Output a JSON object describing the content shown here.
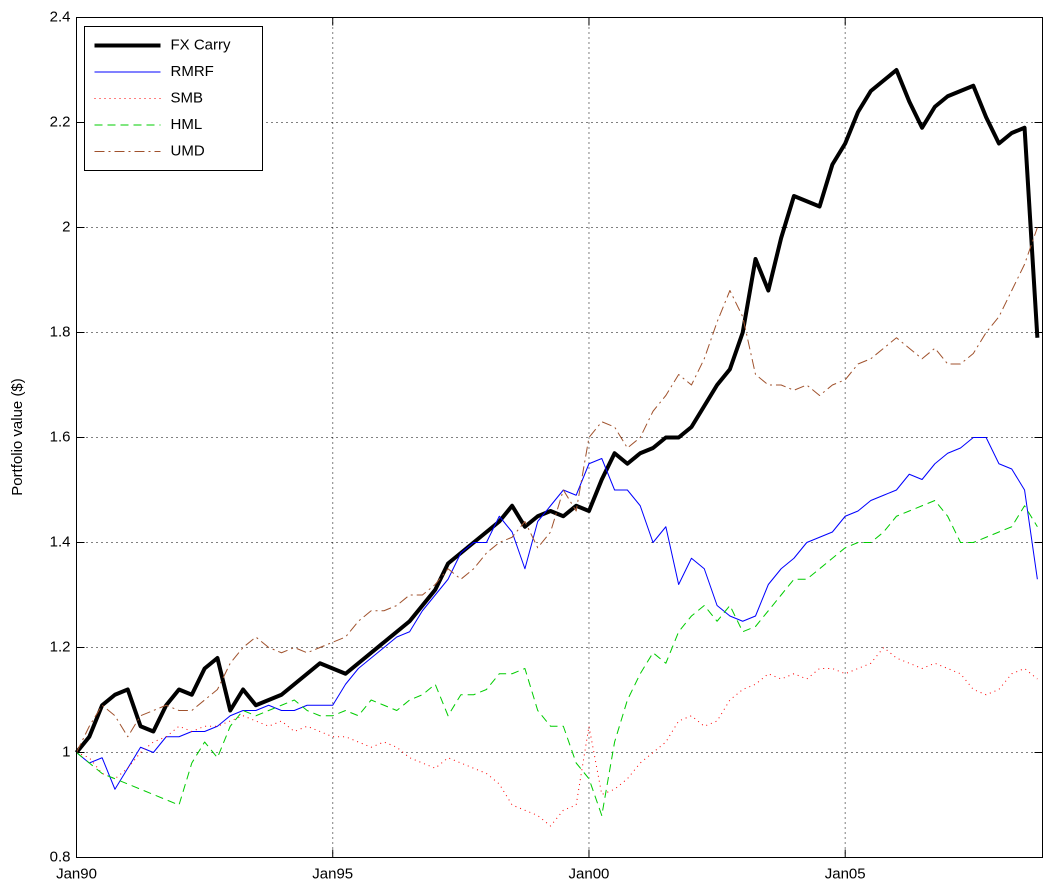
{
  "chart_data": {
    "type": "line",
    "ylabel": "Portfolio value ($)",
    "x": [
      1990,
      1990.25,
      1990.5,
      1990.75,
      1991,
      1991.25,
      1991.5,
      1991.75,
      1992,
      1992.25,
      1992.5,
      1992.75,
      1993,
      1993.25,
      1993.5,
      1993.75,
      1994,
      1994.25,
      1994.5,
      1994.75,
      1995,
      1995.25,
      1995.5,
      1995.75,
      1996,
      1996.25,
      1996.5,
      1996.75,
      1997,
      1997.25,
      1997.5,
      1997.75,
      1998,
      1998.25,
      1998.5,
      1998.75,
      1999,
      1999.25,
      1999.5,
      1999.75,
      2000,
      2000.25,
      2000.5,
      2000.75,
      2001,
      2001.25,
      2001.5,
      2001.75,
      2002,
      2002.25,
      2002.5,
      2002.75,
      2003,
      2003.25,
      2003.5,
      2003.75,
      2004,
      2004.25,
      2004.5,
      2004.75,
      2005,
      2005.25,
      2005.5,
      2005.75,
      2006,
      2006.25,
      2006.5,
      2006.75,
      2007,
      2007.25,
      2007.5,
      2007.75,
      2008,
      2008.25,
      2008.5,
      2008.75
    ],
    "series": [
      {
        "name": "FX Carry",
        "color": "#000000",
        "linestyle": "solid",
        "linewidth": 4,
        "values": [
          1.0,
          1.03,
          1.09,
          1.11,
          1.12,
          1.05,
          1.04,
          1.09,
          1.12,
          1.11,
          1.16,
          1.18,
          1.08,
          1.12,
          1.09,
          1.1,
          1.11,
          1.13,
          1.15,
          1.17,
          1.16,
          1.15,
          1.17,
          1.19,
          1.21,
          1.23,
          1.25,
          1.28,
          1.31,
          1.36,
          1.38,
          1.4,
          1.42,
          1.44,
          1.47,
          1.43,
          1.45,
          1.46,
          1.45,
          1.47,
          1.46,
          1.52,
          1.57,
          1.55,
          1.57,
          1.58,
          1.6,
          1.6,
          1.62,
          1.66,
          1.7,
          1.73,
          1.8,
          1.94,
          1.88,
          1.98,
          2.06,
          2.05,
          2.04,
          2.12,
          2.16,
          2.22,
          2.26,
          2.28,
          2.3,
          2.24,
          2.19,
          2.23,
          2.25,
          2.26,
          2.27,
          2.21,
          2.16,
          2.18,
          2.19,
          1.79
        ]
      },
      {
        "name": "RMRF",
        "color": "#0000ff",
        "linestyle": "solid",
        "linewidth": 1,
        "values": [
          1.0,
          0.98,
          0.99,
          0.93,
          0.97,
          1.01,
          1.0,
          1.03,
          1.03,
          1.04,
          1.04,
          1.05,
          1.07,
          1.08,
          1.08,
          1.09,
          1.08,
          1.08,
          1.09,
          1.09,
          1.09,
          1.13,
          1.16,
          1.18,
          1.2,
          1.22,
          1.23,
          1.27,
          1.3,
          1.33,
          1.38,
          1.4,
          1.4,
          1.45,
          1.42,
          1.35,
          1.44,
          1.47,
          1.5,
          1.49,
          1.55,
          1.56,
          1.5,
          1.5,
          1.47,
          1.4,
          1.43,
          1.32,
          1.37,
          1.35,
          1.28,
          1.26,
          1.25,
          1.26,
          1.32,
          1.35,
          1.37,
          1.4,
          1.41,
          1.42,
          1.45,
          1.46,
          1.48,
          1.49,
          1.5,
          1.53,
          1.52,
          1.55,
          1.57,
          1.58,
          1.6,
          1.6,
          1.55,
          1.54,
          1.5,
          1.33
        ]
      },
      {
        "name": "SMB",
        "color": "#ff0000",
        "linestyle": "dotted",
        "linewidth": 1,
        "values": [
          1.0,
          0.99,
          0.96,
          0.95,
          0.97,
          1.0,
          1.02,
          1.03,
          1.05,
          1.04,
          1.05,
          1.05,
          1.06,
          1.07,
          1.06,
          1.05,
          1.06,
          1.04,
          1.05,
          1.04,
          1.03,
          1.03,
          1.02,
          1.01,
          1.02,
          1.01,
          0.99,
          0.98,
          0.97,
          0.99,
          0.98,
          0.97,
          0.96,
          0.94,
          0.9,
          0.89,
          0.88,
          0.86,
          0.89,
          0.9,
          1.05,
          0.92,
          0.93,
          0.95,
          0.98,
          1.0,
          1.02,
          1.06,
          1.07,
          1.05,
          1.06,
          1.1,
          1.12,
          1.13,
          1.15,
          1.14,
          1.15,
          1.14,
          1.16,
          1.16,
          1.15,
          1.16,
          1.17,
          1.2,
          1.18,
          1.17,
          1.16,
          1.17,
          1.16,
          1.15,
          1.12,
          1.11,
          1.12,
          1.15,
          1.16,
          1.14
        ]
      },
      {
        "name": "HML",
        "color": "#00cc00",
        "linestyle": "dashed",
        "linewidth": 1,
        "values": [
          1.0,
          0.98,
          0.96,
          0.95,
          0.94,
          0.93,
          0.92,
          0.91,
          0.9,
          0.98,
          1.02,
          0.99,
          1.05,
          1.08,
          1.07,
          1.08,
          1.09,
          1.1,
          1.08,
          1.07,
          1.07,
          1.08,
          1.07,
          1.1,
          1.09,
          1.08,
          1.1,
          1.11,
          1.13,
          1.07,
          1.11,
          1.11,
          1.12,
          1.15,
          1.15,
          1.16,
          1.08,
          1.05,
          1.05,
          0.98,
          0.95,
          0.88,
          1.02,
          1.1,
          1.15,
          1.19,
          1.17,
          1.23,
          1.26,
          1.28,
          1.25,
          1.28,
          1.23,
          1.24,
          1.27,
          1.3,
          1.33,
          1.33,
          1.35,
          1.37,
          1.39,
          1.4,
          1.4,
          1.42,
          1.45,
          1.46,
          1.47,
          1.48,
          1.45,
          1.4,
          1.4,
          1.41,
          1.42,
          1.43,
          1.47,
          1.43
        ]
      },
      {
        "name": "UMD",
        "color": "#a0522d",
        "linestyle": "dashdot",
        "linewidth": 1,
        "values": [
          1.0,
          1.05,
          1.09,
          1.07,
          1.03,
          1.07,
          1.08,
          1.09,
          1.08,
          1.08,
          1.1,
          1.12,
          1.17,
          1.2,
          1.22,
          1.2,
          1.19,
          1.2,
          1.19,
          1.2,
          1.21,
          1.22,
          1.25,
          1.27,
          1.27,
          1.28,
          1.3,
          1.3,
          1.32,
          1.35,
          1.33,
          1.35,
          1.38,
          1.4,
          1.41,
          1.44,
          1.39,
          1.42,
          1.5,
          1.46,
          1.6,
          1.63,
          1.62,
          1.58,
          1.6,
          1.65,
          1.68,
          1.72,
          1.7,
          1.75,
          1.82,
          1.88,
          1.83,
          1.72,
          1.7,
          1.7,
          1.69,
          1.7,
          1.68,
          1.7,
          1.71,
          1.74,
          1.75,
          1.77,
          1.79,
          1.77,
          1.75,
          1.77,
          1.74,
          1.74,
          1.76,
          1.8,
          1.83,
          1.88,
          1.93,
          2.0
        ]
      }
    ],
    "xlim": [
      1990,
      2008.85
    ],
    "xticks": [
      {
        "value": 1990,
        "label": "Jan90"
      },
      {
        "value": 1995,
        "label": "Jan95"
      },
      {
        "value": 2000,
        "label": "Jan00"
      },
      {
        "value": 2005,
        "label": "Jan05"
      }
    ],
    "ylim": [
      0.8,
      2.4
    ],
    "yticks": [
      0.8,
      1,
      1.2,
      1.4,
      1.6,
      1.8,
      2,
      2.2,
      2.4
    ],
    "grid": true,
    "legend": "upper left"
  }
}
